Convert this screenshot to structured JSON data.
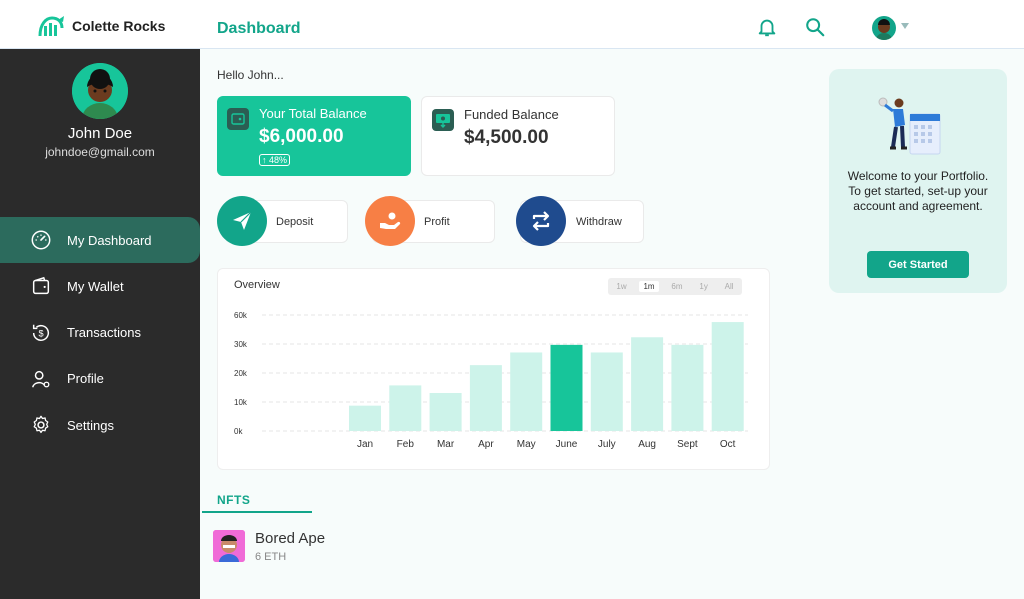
{
  "app": {
    "name": "Colette Rocks"
  },
  "header": {
    "title": "Dashboard",
    "icons": [
      "bell-icon",
      "search-icon"
    ]
  },
  "user": {
    "name": "John Doe",
    "email": "johndoe@gmail.com"
  },
  "sidebar": {
    "items": [
      {
        "label": "My Dashboard",
        "icon": "speedometer-icon",
        "active": true
      },
      {
        "label": "My Wallet",
        "icon": "wallet-icon",
        "active": false
      },
      {
        "label": "Transactions",
        "icon": "transactions-icon",
        "active": false
      },
      {
        "label": "Profile",
        "icon": "user-icon",
        "active": false
      },
      {
        "label": "Settings",
        "icon": "gear-icon",
        "active": false
      }
    ]
  },
  "main": {
    "greeting": "Hello John...",
    "total_balance": {
      "label": "Your Total Balance",
      "value": "$6,000.00",
      "change": "↑ 48%"
    },
    "funded_balance": {
      "label": "Funded Balance",
      "value": "$4,500.00"
    },
    "actions": [
      {
        "label": "Deposit",
        "color": "#12a58a"
      },
      {
        "label": "Profit",
        "color": "#f77f45"
      },
      {
        "label": "Withdraw",
        "color": "#1f4b8e"
      }
    ],
    "overview": {
      "title": "Overview",
      "ranges": [
        "1w",
        "1m",
        "6m",
        "1y",
        "All"
      ],
      "selected_range": "1m"
    },
    "nfts": {
      "tab": "NFTS",
      "items": [
        {
          "name": "Bored Ape",
          "price": "6 ETH"
        }
      ]
    }
  },
  "welcome": {
    "text": "Welcome to your Portfolio. To get started, set-up your account and agreement.",
    "button": "Get Started"
  },
  "colors": {
    "accent": "#12a58a",
    "bar": "#cdf3ea",
    "bar_highlight": "#17c59a",
    "sidebar": "#2b2b2b"
  },
  "chart_data": {
    "type": "bar",
    "categories": [
      "Jan",
      "Feb",
      "Mar",
      "Apr",
      "May",
      "June",
      "July",
      "Aug",
      "Sept",
      "Oct"
    ],
    "values": [
      10000,
      18000,
      15000,
      26000,
      31000,
      34000,
      31000,
      37000,
      34000,
      43000
    ],
    "highlight": "June",
    "ytick_labels": [
      "0k",
      "10k",
      "20k",
      "30k",
      "60k"
    ],
    "ylim": [
      0,
      60000
    ]
  }
}
